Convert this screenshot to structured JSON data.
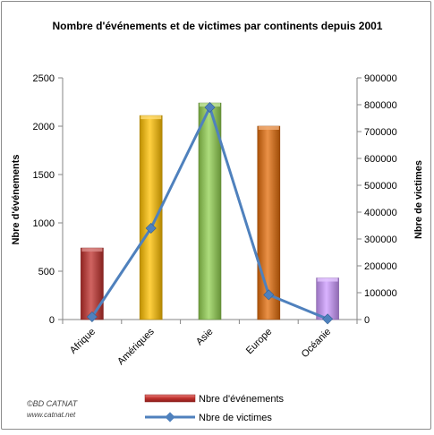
{
  "chart_data": {
    "type": "bar",
    "title": "Nombre d'événements et de victimes par continents depuis 2001",
    "categories": [
      "Afrique",
      "Amériques",
      "Asie",
      "Europe",
      "Océanie"
    ],
    "ylabel": "Nbre d'événements",
    "y2label": "Nbre de victimes",
    "ylim": [
      0,
      2500
    ],
    "y2lim": [
      0,
      900000
    ],
    "yticks": [
      "0",
      "500",
      "1000",
      "1500",
      "2000",
      "2500"
    ],
    "y2ticks": [
      "0",
      "100000",
      "200000",
      "300000",
      "400000",
      "500000",
      "600000",
      "700000",
      "800000",
      "900000"
    ],
    "series": [
      {
        "name": "Nbre d'événements",
        "type": "bar",
        "axis": "left",
        "values": [
          740,
          2110,
          2240,
          2000,
          430
        ],
        "colors": [
          "#c0302c",
          "#ffc000",
          "#92d050",
          "#e36c0a",
          "#cc99ff"
        ]
      },
      {
        "name": "Nbre de victimes",
        "type": "line",
        "axis": "right",
        "color": "#4f81bd",
        "values": [
          10000,
          340000,
          790000,
          92000,
          2000
        ]
      }
    ],
    "grid": false,
    "legend": "bottom"
  },
  "credit": {
    "line1": "©BD CATNAT",
    "line2": "www.catnat.net"
  }
}
